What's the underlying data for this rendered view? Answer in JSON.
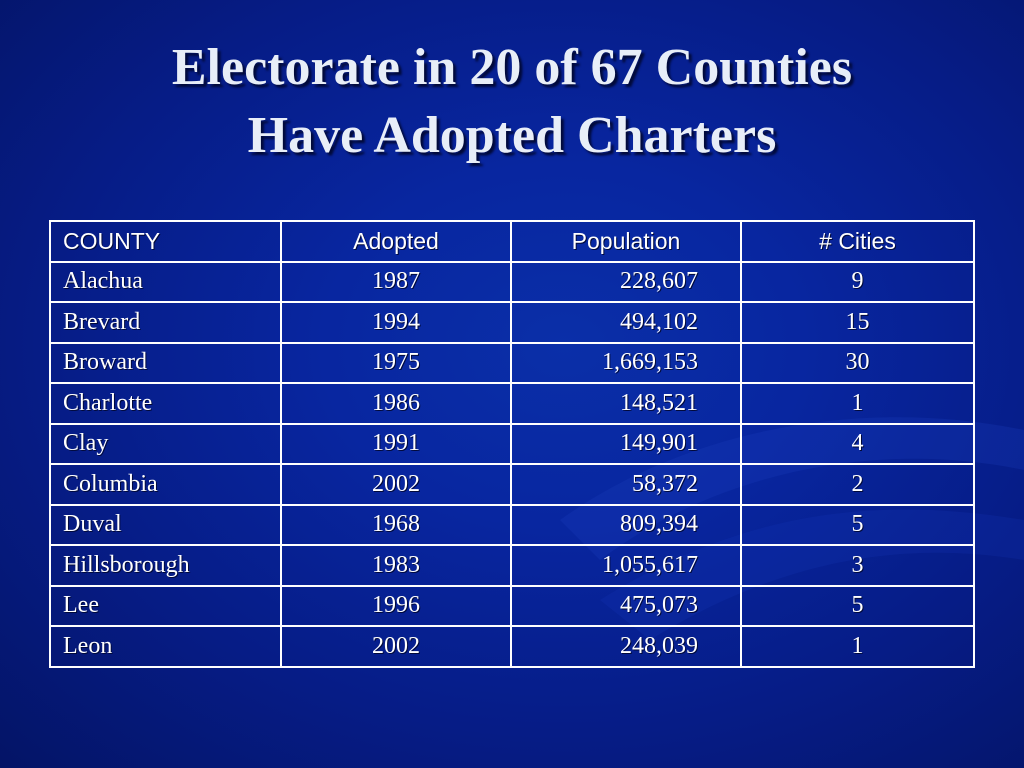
{
  "slide": {
    "title_line1": "Electorate in 20 of 67 Counties",
    "title_line2": "Have Adopted Charters"
  },
  "table": {
    "headers": [
      "COUNTY",
      "Adopted",
      "Population",
      "# Cities"
    ],
    "rows": [
      {
        "county": "Alachua",
        "adopted": "1987",
        "population": "228,607",
        "cities": "9"
      },
      {
        "county": "Brevard",
        "adopted": "1994",
        "population": "494,102",
        "cities": "15"
      },
      {
        "county": "Broward",
        "adopted": "1975",
        "population": "1,669,153",
        "cities": "30"
      },
      {
        "county": "Charlotte",
        "adopted": "1986",
        "population": "148,521",
        "cities": "1"
      },
      {
        "county": "Clay",
        "adopted": "1991",
        "population": "149,901",
        "cities": "4"
      },
      {
        "county": "Columbia",
        "adopted": "2002",
        "population": "58,372",
        "cities": "2"
      },
      {
        "county": "Duval",
        "adopted": "1968",
        "population": "809,394",
        "cities": "5"
      },
      {
        "county": "Hillsborough",
        "adopted": "1983",
        "population": "1,055,617",
        "cities": "3"
      },
      {
        "county": "Lee",
        "adopted": "1996",
        "population": "475,073",
        "cities": "5"
      },
      {
        "county": "Leon",
        "adopted": "2002",
        "population": "248,039",
        "cities": "1"
      }
    ]
  },
  "colors": {
    "background": "#0826a0",
    "text": "#ffffff",
    "title": "#e8eef8"
  }
}
